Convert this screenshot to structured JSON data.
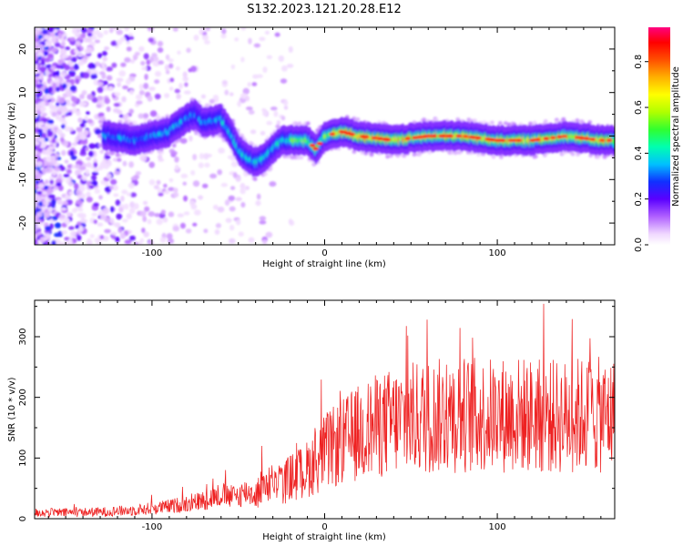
{
  "title": "S132.2023.121.20.28.E12",
  "chart_data": [
    {
      "type": "heatmap",
      "xlabel": "Height of straight line (km)",
      "ylabel": "Frequency (Hz)",
      "xlim": [
        -168,
        168
      ],
      "ylim": [
        -25,
        25
      ],
      "xticks": [
        -100,
        0,
        100
      ],
      "yticks": [
        -20,
        -10,
        0,
        10,
        20
      ],
      "colorbar": {
        "label": "Normalized spectral amplitude",
        "range": [
          0,
          0.95
        ],
        "ticks": [
          0.0,
          0.2,
          0.4,
          0.6,
          0.8
        ]
      },
      "ridge": {
        "x": [
          -125,
          -110,
          -100,
          -90,
          -80,
          -75,
          -70,
          -60,
          -55,
          -50,
          -45,
          -40,
          -35,
          -30,
          -25,
          -20,
          -10,
          -5,
          0,
          10,
          20,
          40,
          60,
          80,
          100,
          120,
          140,
          160,
          165
        ],
        "freq": [
          0,
          -1,
          0,
          1,
          4,
          5,
          3,
          4,
          1,
          -3,
          -5,
          -6,
          -5,
          -3,
          -1,
          -1,
          -1,
          -3,
          0,
          1,
          0,
          -1,
          0,
          0,
          -1,
          -1,
          0,
          -1,
          -1
        ]
      }
    },
    {
      "type": "line",
      "xlabel": "Height of straight line (km)",
      "ylabel": "SNR (10 * v/v)",
      "xlim": [
        -168,
        168
      ],
      "ylim": [
        0,
        360
      ],
      "xticks": [
        -100,
        0,
        100
      ],
      "yticks": [
        0,
        100,
        200,
        300
      ],
      "series": [
        {
          "color": "#ee2222",
          "x": [
            -168,
            -150,
            -130,
            -110,
            -100,
            -90,
            -80,
            -70,
            -60,
            -55,
            -50,
            -45,
            -40,
            -35,
            -30,
            -25,
            -20,
            -15,
            -10,
            -5,
            0,
            10,
            20,
            30,
            40,
            50,
            60,
            70,
            80,
            90,
            100,
            110,
            120,
            130,
            140,
            150,
            160,
            168
          ],
          "values": [
            10,
            10,
            11,
            14,
            17,
            20,
            25,
            30,
            40,
            36,
            38,
            45,
            38,
            58,
            60,
            55,
            68,
            72,
            82,
            95,
            110,
            125,
            142,
            152,
            160,
            165,
            168,
            170,
            172,
            170,
            170,
            172,
            170,
            168,
            168,
            172,
            170,
            170
          ]
        }
      ]
    }
  ]
}
